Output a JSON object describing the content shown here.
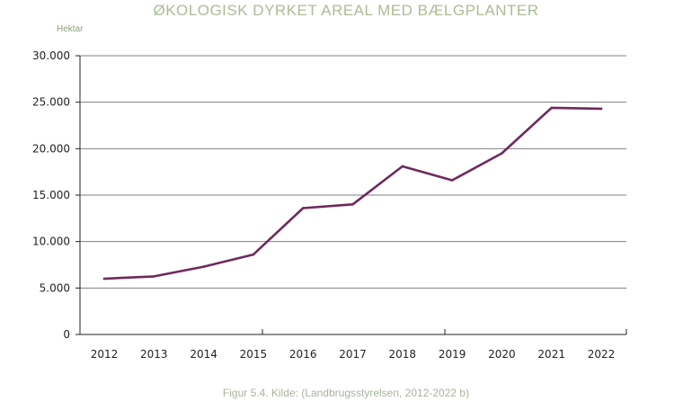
{
  "colors": {
    "title": "#a9bd94",
    "unit_label": "#8aa07a",
    "caption": "#a7b59a",
    "line": "#6e2a5c",
    "grid": "#808080",
    "axis": "#222222"
  },
  "chart_data": {
    "type": "line",
    "title": "ØKOLOGISK DYRKET AREAL MED BÆLGPLANTER",
    "ylabel": "Hektar",
    "xlabel": "",
    "caption": "Figur 5.4. Kilde: (Landbrugsstyrelsen, 2012-2022 b)",
    "categories": [
      "2012",
      "2013",
      "2014",
      "2015",
      "2016",
      "2017",
      "2018",
      "2019",
      "2020",
      "2021",
      "2022"
    ],
    "series": [
      {
        "values": [
          6000,
          6250,
          7300,
          8600,
          13600,
          14000,
          18100,
          16600,
          19500,
          24400,
          24300
        ]
      }
    ],
    "ylim": [
      0,
      30000
    ],
    "yticks": [
      0,
      5000,
      10000,
      15000,
      20000,
      25000,
      30000
    ],
    "ytick_labels": [
      "0",
      "5.000",
      "10.000",
      "15.000",
      "20.000",
      "25.000",
      "30.000"
    ],
    "grid": true,
    "legend": "none"
  }
}
